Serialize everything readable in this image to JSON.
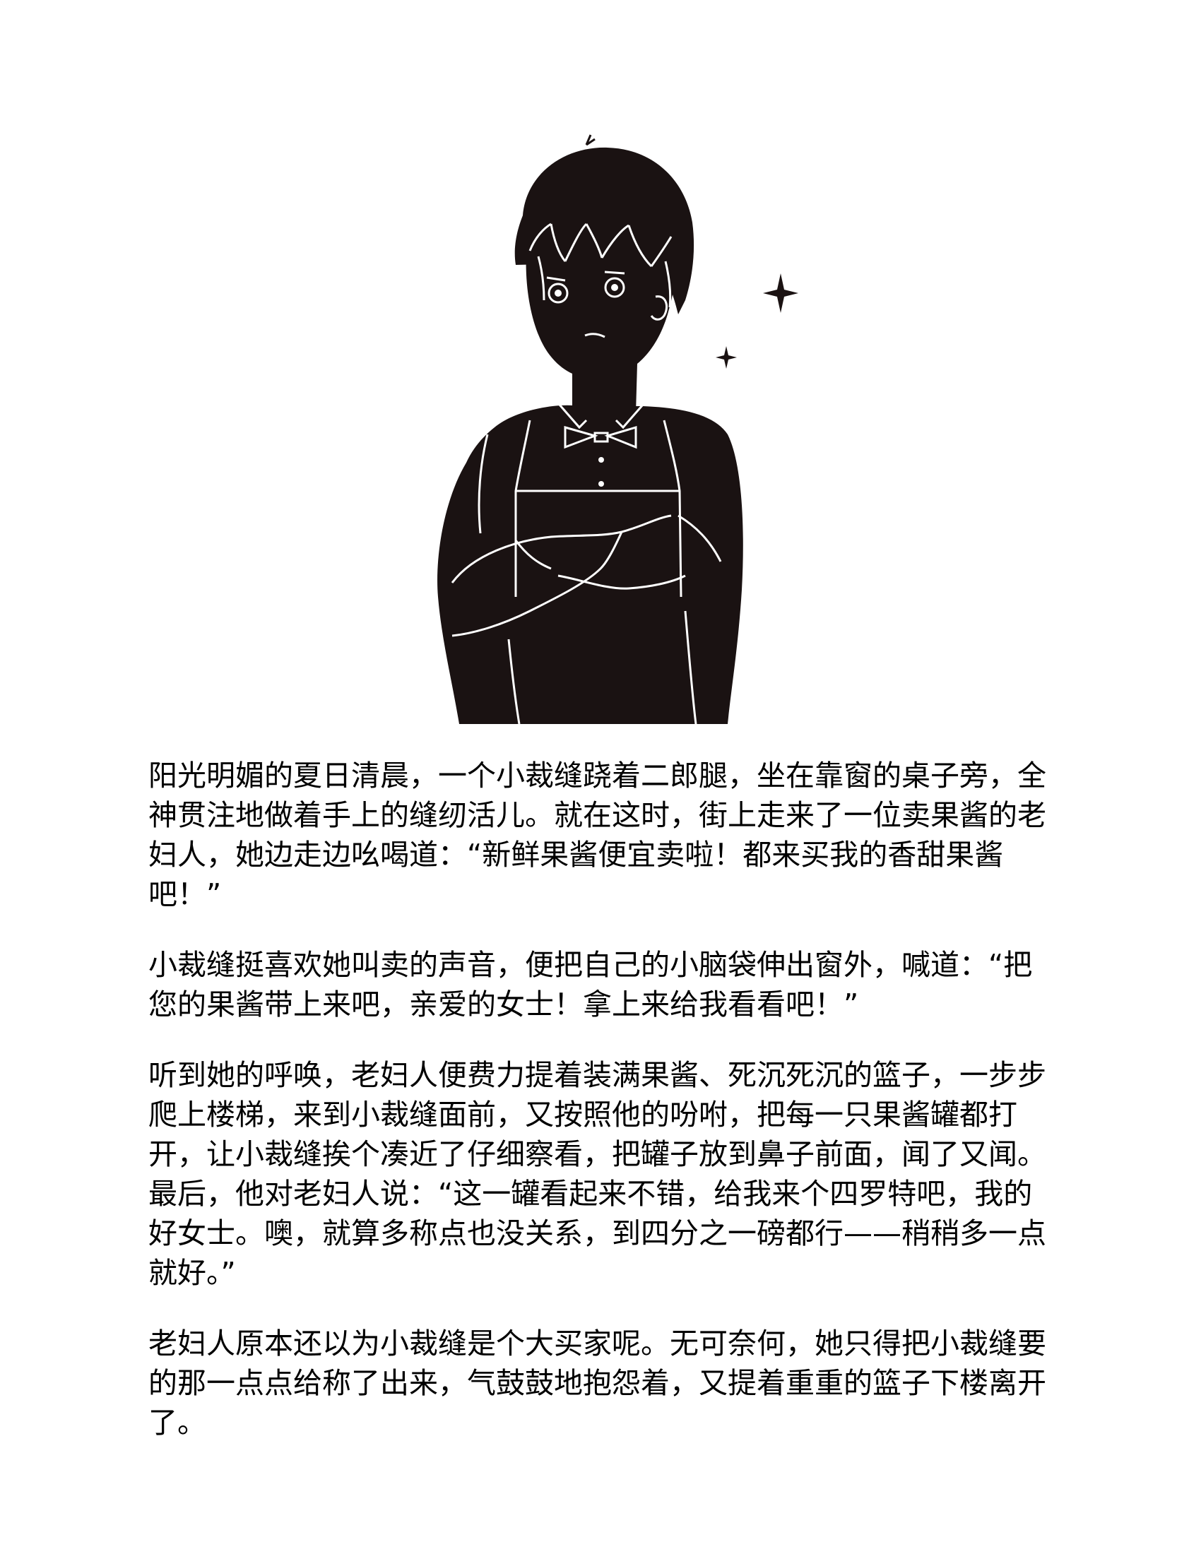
{
  "story": {
    "paragraphs": [
      "阳光明媚的夏日清晨，一个小裁缝跷着二郎腿，坐在靠窗的桌子旁，全神贯注地做着手上的缝纫活儿。就在这时，街上走来了一位卖果酱的老妇人，她边走边吆喝道：“新鲜果酱便宜卖啦！都来买我的香甜果酱吧！”",
      "小裁缝挺喜欢她叫卖的声音，便把自己的小脑袋伸出窗外，喊道：“把您的果酱带上来吧，亲爱的女士！拿上来给我看看吧！”",
      "听到她的呼唤，老妇人便费力提着装满果酱、死沉死沉的篮子，一步步爬上楼梯，来到小裁缝面前，又按照他的吩咐，把每一只果酱罐都打开，让小裁缝挨个凑近了仔细察看，把罐子放到鼻子前面，闻了又闻。最后，他对老妇人说：“这一罐看起来不错，给我来个四罗特吧，我的好女士。噢，就算多称点也没关系，到四分之一磅都行——稍稍多一点就好。”",
      "老妇人原本还以为小裁缝是个大买家呢。无可奈何，她只得把小裁缝要的那一点点给称了出来，气鼓鼓地抱怨着，又提着重重的篮子下楼离开了。"
    ]
  },
  "illustration": {
    "subject": "tailor-silhouette",
    "fill_color": "#1a1212",
    "line_color": "#ffffff"
  }
}
